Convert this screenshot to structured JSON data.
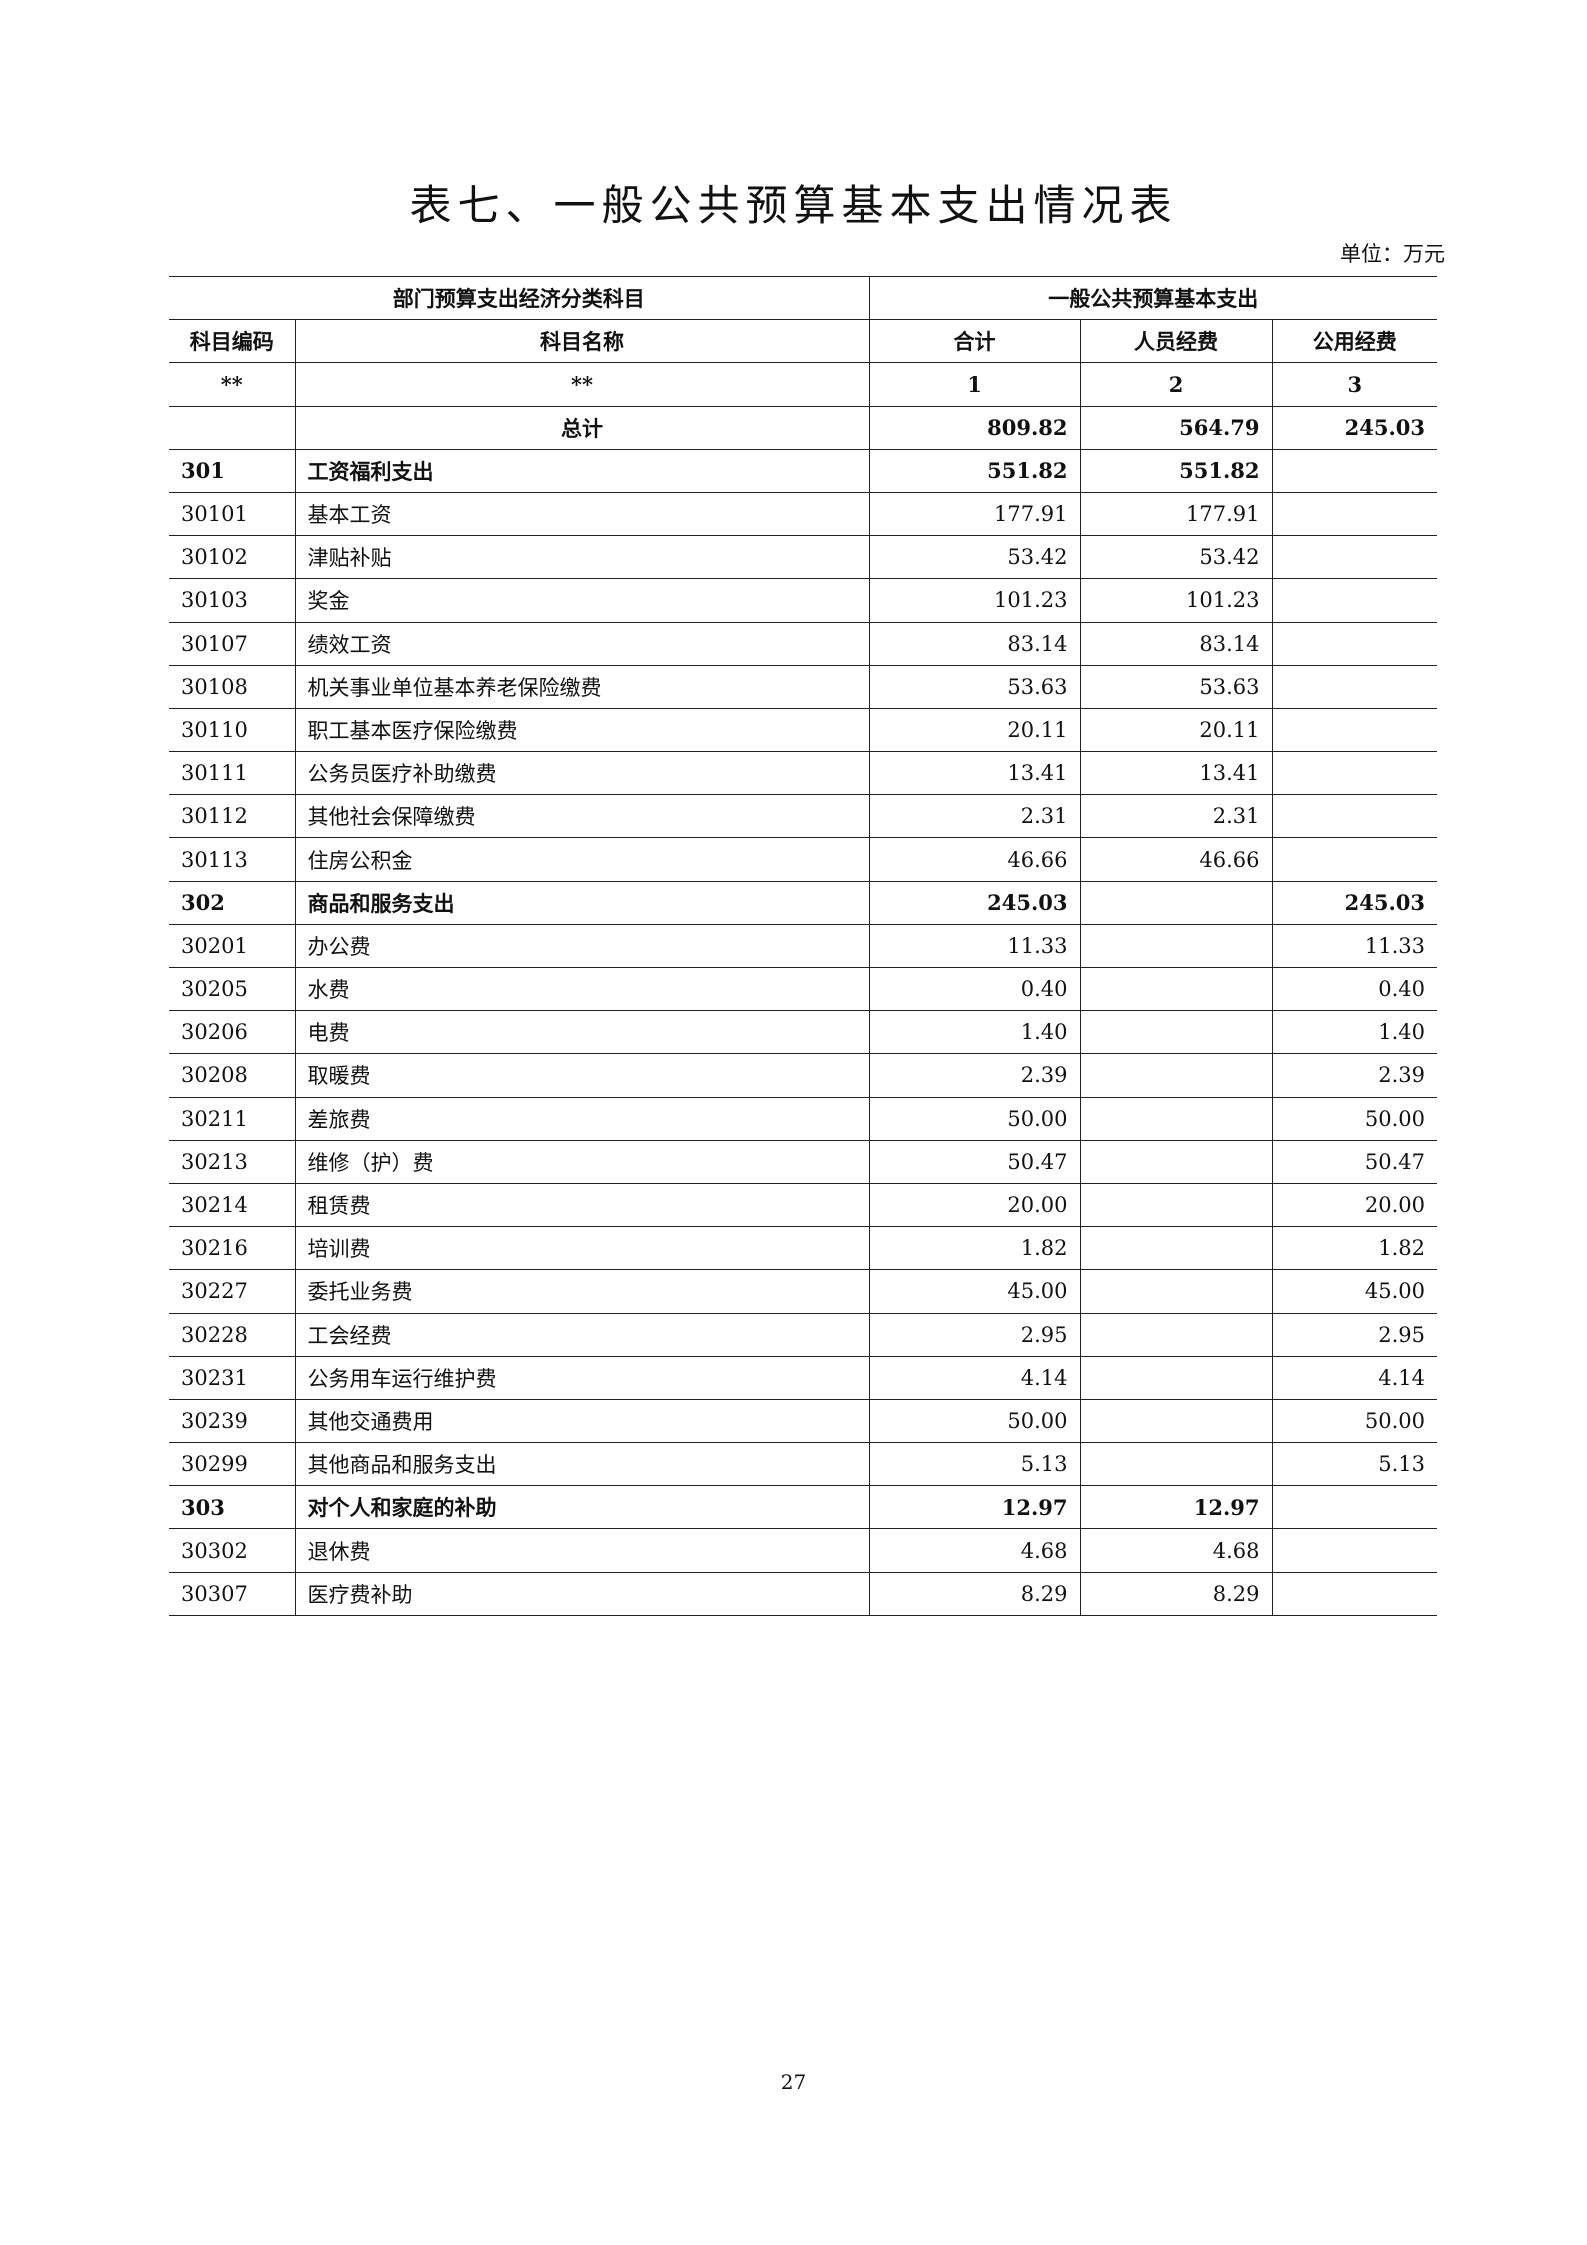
{
  "title": "表七、一般公共预算基本支出情况表",
  "unit": "单位：万元",
  "header": {
    "group_left": "部门预算支出经济分类科目",
    "group_right": "一般公共预算基本支出",
    "code": "科目编码",
    "name": "科目名称",
    "total": "合计",
    "personnel": "人员经费",
    "public": "公用经费"
  },
  "index_row": {
    "code": "**",
    "name": "**",
    "total": "1",
    "personnel": "2",
    "public": "3"
  },
  "grand_total": {
    "name": "总计",
    "total": "809.82",
    "personnel": "564.79",
    "public": "245.03"
  },
  "rows": [
    {
      "code": "301",
      "name": "工资福利支出",
      "total": "551.82",
      "personnel": "551.82",
      "public": "",
      "bold": true
    },
    {
      "code": "30101",
      "name": "基本工资",
      "total": "177.91",
      "personnel": "177.91",
      "public": ""
    },
    {
      "code": "30102",
      "name": "津贴补贴",
      "total": "53.42",
      "personnel": "53.42",
      "public": ""
    },
    {
      "code": "30103",
      "name": "奖金",
      "total": "101.23",
      "personnel": "101.23",
      "public": ""
    },
    {
      "code": "30107",
      "name": "绩效工资",
      "total": "83.14",
      "personnel": "83.14",
      "public": ""
    },
    {
      "code": "30108",
      "name": "机关事业单位基本养老保险缴费",
      "total": "53.63",
      "personnel": "53.63",
      "public": ""
    },
    {
      "code": "30110",
      "name": "职工基本医疗保险缴费",
      "total": "20.11",
      "personnel": "20.11",
      "public": ""
    },
    {
      "code": "30111",
      "name": "公务员医疗补助缴费",
      "total": "13.41",
      "personnel": "13.41",
      "public": ""
    },
    {
      "code": "30112",
      "name": "其他社会保障缴费",
      "total": "2.31",
      "personnel": "2.31",
      "public": ""
    },
    {
      "code": "30113",
      "name": "住房公积金",
      "total": "46.66",
      "personnel": "46.66",
      "public": ""
    },
    {
      "code": "302",
      "name": "商品和服务支出",
      "total": "245.03",
      "personnel": "",
      "public": "245.03",
      "bold": true
    },
    {
      "code": "30201",
      "name": "办公费",
      "total": "11.33",
      "personnel": "",
      "public": "11.33"
    },
    {
      "code": "30205",
      "name": "水费",
      "total": "0.40",
      "personnel": "",
      "public": "0.40"
    },
    {
      "code": "30206",
      "name": "电费",
      "total": "1.40",
      "personnel": "",
      "public": "1.40"
    },
    {
      "code": "30208",
      "name": "取暖费",
      "total": "2.39",
      "personnel": "",
      "public": "2.39"
    },
    {
      "code": "30211",
      "name": "差旅费",
      "total": "50.00",
      "personnel": "",
      "public": "50.00"
    },
    {
      "code": "30213",
      "name": "维修（护）费",
      "total": "50.47",
      "personnel": "",
      "public": "50.47"
    },
    {
      "code": "30214",
      "name": "租赁费",
      "total": "20.00",
      "personnel": "",
      "public": "20.00"
    },
    {
      "code": "30216",
      "name": "培训费",
      "total": "1.82",
      "personnel": "",
      "public": "1.82"
    },
    {
      "code": "30227",
      "name": "委托业务费",
      "total": "45.00",
      "personnel": "",
      "public": "45.00"
    },
    {
      "code": "30228",
      "name": "工会经费",
      "total": "2.95",
      "personnel": "",
      "public": "2.95"
    },
    {
      "code": "30231",
      "name": "公务用车运行维护费",
      "total": "4.14",
      "personnel": "",
      "public": "4.14"
    },
    {
      "code": "30239",
      "name": "其他交通费用",
      "total": "50.00",
      "personnel": "",
      "public": "50.00"
    },
    {
      "code": "30299",
      "name": "其他商品和服务支出",
      "total": "5.13",
      "personnel": "",
      "public": "5.13"
    },
    {
      "code": "303",
      "name": "对个人和家庭的补助",
      "total": "12.97",
      "personnel": "12.97",
      "public": "",
      "bold": true
    },
    {
      "code": "30302",
      "name": "退休费",
      "total": "4.68",
      "personnel": "4.68",
      "public": ""
    },
    {
      "code": "30307",
      "name": "医疗费补助",
      "total": "8.29",
      "personnel": "8.29",
      "public": ""
    }
  ],
  "page_number": "27"
}
